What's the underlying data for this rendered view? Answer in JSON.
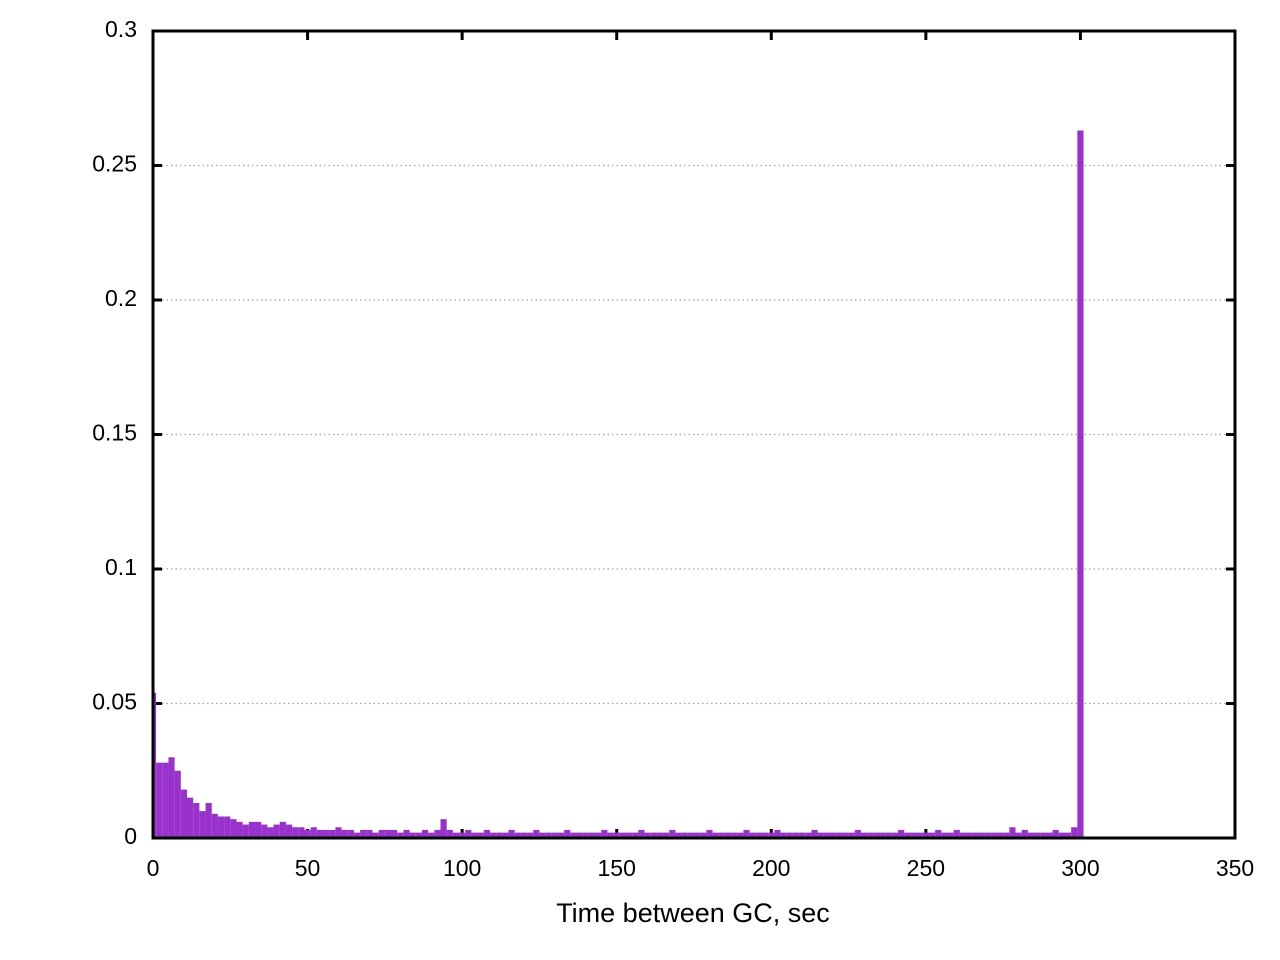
{
  "chart_data": {
    "type": "histogram",
    "xlabel": "Time between GC, sec",
    "color": "#9932cc",
    "grid": true,
    "xlim": [
      0,
      350
    ],
    "xticks": [
      0,
      50,
      100,
      150,
      200,
      250,
      300,
      350
    ],
    "ylim": [
      0,
      0.3
    ],
    "yticks": [
      0,
      0.05,
      0.1,
      0.15,
      0.2,
      0.25,
      0.3
    ],
    "bins": [
      -1,
      1,
      3,
      5,
      7,
      9,
      11,
      13,
      15,
      17,
      19,
      21,
      23,
      25,
      27,
      29,
      31,
      33,
      35,
      37,
      39,
      41,
      43,
      45,
      47,
      49,
      51,
      53,
      55,
      57,
      59,
      61,
      63,
      65,
      67,
      69,
      71,
      73,
      75,
      77,
      79,
      81,
      83,
      85,
      87,
      89,
      91,
      93,
      95,
      97,
      99,
      101,
      103,
      105,
      107,
      109,
      111,
      113,
      115,
      117,
      119,
      121,
      123,
      125,
      127,
      129,
      131,
      133,
      135,
      137,
      139,
      141,
      143,
      145,
      147,
      149,
      151,
      153,
      155,
      157,
      159,
      161,
      163,
      165,
      167,
      169,
      171,
      173,
      175,
      177,
      179,
      181,
      183,
      185,
      187,
      189,
      191,
      193,
      195,
      197,
      199,
      201,
      203,
      205,
      207,
      209,
      211,
      213,
      215,
      217,
      219,
      221,
      223,
      225,
      227,
      229,
      231,
      233,
      235,
      237,
      239,
      241,
      243,
      245,
      247,
      249,
      251,
      253,
      255,
      257,
      259,
      261,
      263,
      265,
      267,
      269,
      271,
      273,
      275,
      277,
      279,
      281,
      283,
      285,
      287,
      289,
      291,
      293,
      295,
      297,
      299,
      301
    ],
    "counts": [
      0.054,
      0.028,
      0.028,
      0.03,
      0.025,
      0.018,
      0.015,
      0.013,
      0.01,
      0.013,
      0.009,
      0.008,
      0.008,
      0.007,
      0.006,
      0.005,
      0.006,
      0.006,
      0.005,
      0.004,
      0.005,
      0.006,
      0.005,
      0.004,
      0.004,
      0.003,
      0.004,
      0.003,
      0.003,
      0.003,
      0.004,
      0.003,
      0.003,
      0.002,
      0.003,
      0.003,
      0.002,
      0.003,
      0.003,
      0.003,
      0.002,
      0.003,
      0.002,
      0.002,
      0.003,
      0.002,
      0.003,
      0.007,
      0.003,
      0.002,
      0.002,
      0.003,
      0.002,
      0.002,
      0.003,
      0.002,
      0.002,
      0.002,
      0.003,
      0.002,
      0.002,
      0.002,
      0.003,
      0.002,
      0.002,
      0.002,
      0.002,
      0.003,
      0.002,
      0.002,
      0.002,
      0.002,
      0.002,
      0.003,
      0.002,
      0.002,
      0.002,
      0.002,
      0.002,
      0.003,
      0.002,
      0.002,
      0.002,
      0.002,
      0.003,
      0.002,
      0.002,
      0.002,
      0.002,
      0.002,
      0.003,
      0.002,
      0.002,
      0.002,
      0.002,
      0.002,
      0.003,
      0.002,
      0.002,
      0.002,
      0.002,
      0.003,
      0.002,
      0.002,
      0.002,
      0.002,
      0.002,
      0.003,
      0.002,
      0.002,
      0.002,
      0.002,
      0.002,
      0.002,
      0.003,
      0.002,
      0.002,
      0.002,
      0.002,
      0.002,
      0.002,
      0.003,
      0.002,
      0.002,
      0.002,
      0.002,
      0.002,
      0.003,
      0.002,
      0.002,
      0.003,
      0.002,
      0.002,
      0.002,
      0.002,
      0.002,
      0.002,
      0.002,
      0.002,
      0.004,
      0.002,
      0.003,
      0.002,
      0.002,
      0.002,
      0.002,
      0.003,
      0.002,
      0.002,
      0.004,
      0.263
    ]
  }
}
